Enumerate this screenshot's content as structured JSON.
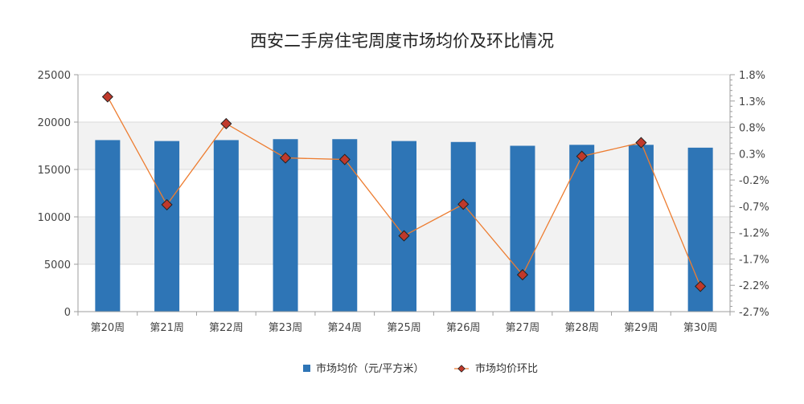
{
  "chart_data": {
    "type": "bar",
    "title": "西安二手房住宅周度市场均价及环比情况",
    "categories": [
      "第20周",
      "第21周",
      "第22周",
      "第23周",
      "第24周",
      "第25周",
      "第26周",
      "第27周",
      "第28周",
      "第29周",
      "第30周"
    ],
    "series": [
      {
        "name": "市场均价（元/平方米）",
        "type": "bar",
        "axis": "left",
        "color": "#2e75b6",
        "values": [
          18100,
          18000,
          18100,
          18200,
          18200,
          18000,
          17900,
          17500,
          17600,
          17600,
          17300
        ]
      },
      {
        "name": "市场均价环比",
        "type": "line",
        "axis": "right",
        "color": "#ed7d31",
        "marker_fill": "#c0392b",
        "values": [
          1.38,
          -0.67,
          0.87,
          0.22,
          0.19,
          -1.26,
          -0.66,
          -2.0,
          0.25,
          0.51,
          -2.22
        ]
      }
    ],
    "left_axis": {
      "ylim": [
        0,
        25000
      ],
      "ticks": [
        "25000",
        "20000",
        "15000",
        "10000",
        "5000",
        "0"
      ],
      "tick_values": [
        25000,
        20000,
        15000,
        10000,
        5000,
        0
      ]
    },
    "right_axis": {
      "ylim": [
        -2.7,
        1.8
      ],
      "ticks": [
        "1.8%",
        "1.3%",
        "0.8%",
        "0.3%",
        "-0.2%",
        "-0.7%",
        "-1.2%",
        "-1.7%",
        "-2.2%",
        "-2.7%"
      ],
      "tick_values": [
        1.8,
        1.3,
        0.8,
        0.3,
        -0.2,
        -0.7,
        -1.2,
        -1.7,
        -2.2,
        -2.7
      ]
    },
    "grid": true,
    "legend_position": "bottom"
  }
}
